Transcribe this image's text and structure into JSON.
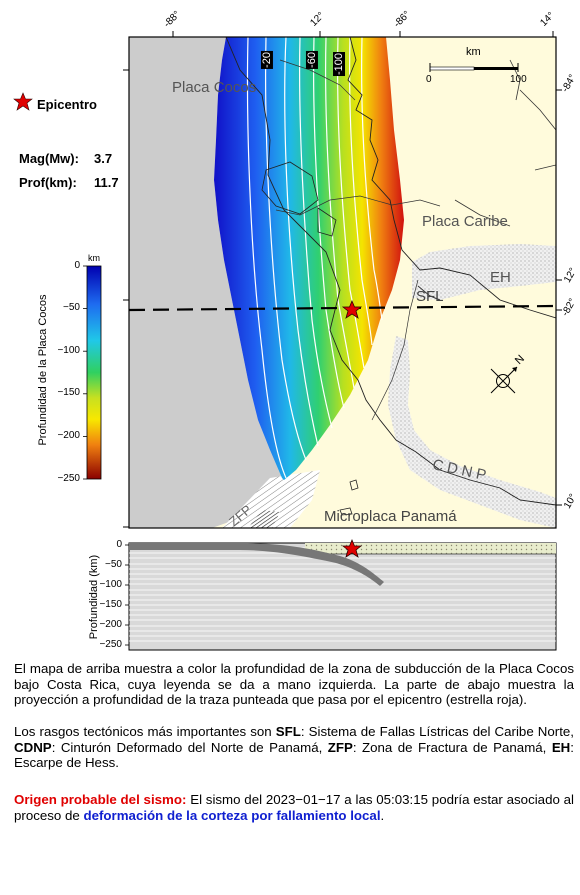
{
  "map": {
    "top_lon_labels": [
      "-88°",
      "12°",
      "-86°",
      "14°"
    ],
    "right_lat_labels": [
      "-84°",
      "12°",
      "-82°",
      "10°"
    ],
    "contour_labels": [
      "-20",
      "-60",
      "-100"
    ],
    "scale_label": "km",
    "scale_ticks": [
      "0",
      "100"
    ],
    "regions": [
      "Placa Cocos",
      "Placa Caribe",
      "EH",
      "SFL",
      "CDNP",
      "Microplaca Panamá",
      "ZFP"
    ],
    "north_label": "N",
    "colors": {
      "land": "#fffbdc",
      "ocean": "#cccccc",
      "epicenter": "#e00000"
    }
  },
  "legend": {
    "epicenter_label": "Epicentro",
    "mag_label": "Mag(Mw):",
    "mag_value": "3.7",
    "depth_label": "Prof(km):",
    "depth_value": "11.7",
    "colorbar_unit": "km",
    "colorbar_title": "Profundidad de la Placa Cocos",
    "colorbar_ticks": [
      "0",
      "−50",
      "−100",
      "−150",
      "−200",
      "−250"
    ]
  },
  "profile": {
    "ylabel": "Profundidad (km)",
    "yticks": [
      "0",
      "−50",
      "−100",
      "−150",
      "−200",
      "−250"
    ]
  },
  "text": {
    "p1": "El mapa de arriba muestra a color la profundidad de la zona de subducción de la Placa Cocos bajo Costa Rica, cuya leyenda se da a mano izquierda.  La parte de abajo muestra la proyección a profundidad de la traza punteada que pasa por el epicentro (estrella roja).",
    "p2_intro": "Los rasgos tectónicos más importantes son ",
    "sfl": "SFL",
    "sfl_desc": ": Sistema de Fallas Lístricas del Caribe Norte, ",
    "cdnp": "CDNP",
    "cdnp_desc": ": Cinturón Deformado del Norte de Panamá, ",
    "zfp": "ZFP",
    "zfp_desc": ": Zona de Fractura de Panamá, ",
    "eh": "EH",
    "eh_desc": ": Escarpe de Hess.",
    "origin_label": "Origen probable del sismo:",
    "origin_text": " El sismo del 2023−01−17 a las 05:03:15 podría estar asociado al proceso de ",
    "origin_cause": "deformación de la corteza por fallamiento local",
    "origin_end": "."
  }
}
